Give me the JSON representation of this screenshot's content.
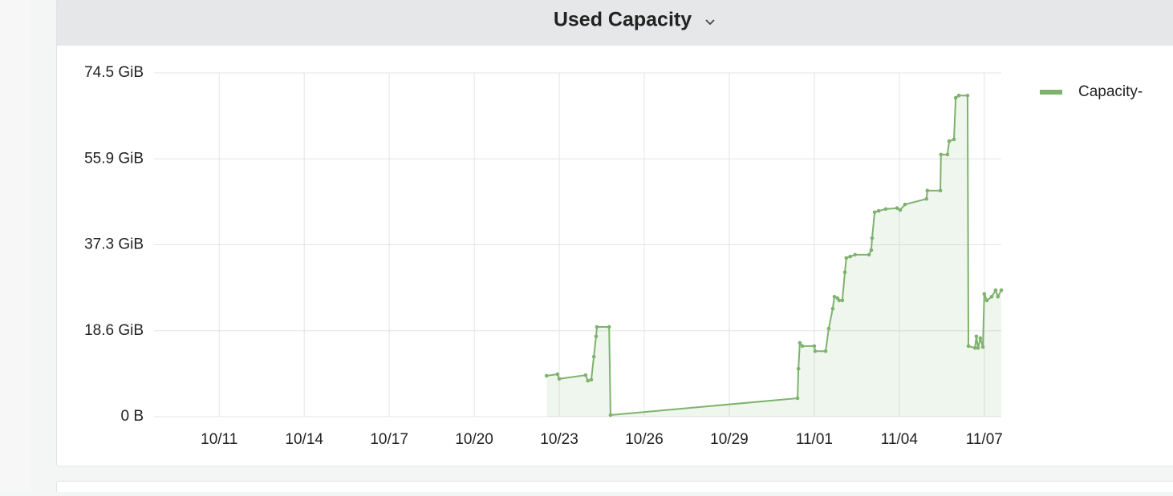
{
  "chart_data": {
    "type": "line",
    "title": "Used Capacity",
    "x": [
      295.55,
      295.94,
      296.0,
      296.93,
      297.01,
      297.13,
      297.22,
      297.3,
      297.33,
      297.76,
      297.81,
      304.41,
      304.44,
      304.49,
      304.58,
      305.0,
      305.03,
      305.4,
      305.51,
      305.65,
      305.71,
      305.82,
      305.88,
      305.99,
      306.08,
      306.13,
      306.27,
      306.44,
      306.93,
      307.01,
      307.04,
      307.13,
      307.27,
      307.52,
      307.92,
      308.03,
      308.2,
      308.96,
      308.99,
      309.45,
      309.47,
      309.7,
      309.76,
      309.93,
      309.99,
      310.1,
      310.41,
      310.44,
      310.67,
      310.72,
      310.78,
      310.86,
      310.95,
      311.0,
      311.09,
      311.26,
      311.4,
      311.48,
      311.6
    ],
    "series": [
      {
        "name": "Capacity-",
        "color": "#7eb26d",
        "values": [
          8.86,
          9.2,
          8.2,
          9.0,
          7.8,
          8.0,
          13.0,
          17.4,
          19.45,
          19.45,
          0.35,
          4.0,
          10.4,
          16.0,
          15.3,
          15.3,
          14.2,
          14.2,
          19.1,
          23.4,
          26.0,
          25.7,
          25.2,
          25.2,
          31.3,
          34.4,
          34.7,
          35.1,
          35.1,
          36.1,
          38.7,
          44.3,
          44.6,
          45.0,
          45.2,
          44.8,
          46.0,
          47.2,
          49.0,
          49.0,
          56.8,
          56.8,
          59.7,
          60.1,
          69.1,
          69.6,
          69.6,
          15.3,
          14.9,
          17.4,
          14.9,
          17.0,
          15.1,
          26.6,
          25.2,
          26.0,
          27.4,
          26.0,
          27.4
        ]
      }
    ],
    "xlim": [
      281.7,
      311.6
    ],
    "xticks": [
      {
        "value": 284,
        "label": "10/11"
      },
      {
        "value": 287,
        "label": "10/14"
      },
      {
        "value": 290,
        "label": "10/17"
      },
      {
        "value": 293,
        "label": "10/20"
      },
      {
        "value": 296,
        "label": "10/23"
      },
      {
        "value": 299,
        "label": "10/26"
      },
      {
        "value": 302,
        "label": "10/29"
      },
      {
        "value": 305,
        "label": "11/01"
      },
      {
        "value": 308,
        "label": "11/04"
      },
      {
        "value": 311,
        "label": "11/07"
      }
    ],
    "ylim": [
      0,
      74.5
    ],
    "yticks": [
      {
        "value": 0,
        "label": "0 B"
      },
      {
        "value": 18.625,
        "label": "18.6 GiB"
      },
      {
        "value": 37.25,
        "label": "37.3 GiB"
      },
      {
        "value": 55.875,
        "label": "55.9 GiB"
      },
      {
        "value": 74.5,
        "label": "74.5 GiB"
      }
    ],
    "grid": true,
    "legend": "right"
  }
}
